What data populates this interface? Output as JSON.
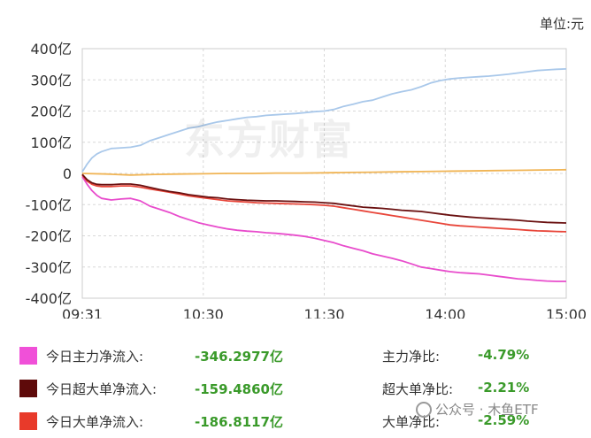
{
  "unit_label": "单位:元",
  "brand_watermark": "东方财富",
  "chart_data": {
    "type": "line",
    "x_ticks": [
      "09:31",
      "10:30",
      "11:30",
      "14:00",
      "15:00"
    ],
    "y_ticks": [
      "400亿",
      "300亿",
      "200亿",
      "100亿",
      "0",
      "-100亿",
      "-200亿",
      "-300亿",
      "-400亿"
    ],
    "ylim": [
      -400,
      400
    ],
    "grid": true,
    "series": [
      {
        "color": "#a9c8ea",
        "x": [
          0,
          1,
          2,
          3,
          4,
          6,
          8,
          10,
          12,
          14,
          16,
          18,
          20,
          22,
          24,
          26,
          28,
          30,
          32,
          34,
          36,
          38,
          40,
          42,
          44,
          46,
          48,
          50,
          52,
          54,
          56,
          58,
          60,
          62,
          64,
          66,
          68,
          70,
          72,
          74,
          76,
          78,
          80,
          82,
          84,
          86,
          88,
          90,
          92,
          94,
          96,
          98,
          100
        ],
        "values": [
          5,
          30,
          50,
          62,
          70,
          80,
          82,
          84,
          90,
          105,
          115,
          125,
          135,
          145,
          150,
          158,
          165,
          170,
          175,
          180,
          182,
          186,
          188,
          190,
          192,
          195,
          198,
          200,
          205,
          215,
          222,
          230,
          235,
          245,
          255,
          262,
          268,
          278,
          290,
          298,
          303,
          306,
          308,
          310,
          312,
          315,
          318,
          322,
          326,
          330,
          332,
          334,
          335
        ]
      },
      {
        "color": "#f0b454",
        "x": [
          0,
          5,
          10,
          15,
          20,
          25,
          30,
          35,
          40,
          45,
          50,
          55,
          60,
          65,
          70,
          75,
          80,
          85,
          90,
          95,
          100
        ],
        "values": [
          0,
          -2,
          -5,
          -3,
          -2,
          -1,
          0,
          0,
          1,
          1,
          2,
          3,
          4,
          5,
          6,
          7,
          8,
          9,
          10,
          11,
          12
        ]
      },
      {
        "color": "#e84ccc",
        "x": [
          0,
          1,
          2,
          3,
          4,
          6,
          8,
          10,
          12,
          14,
          16,
          18,
          20,
          22,
          24,
          26,
          28,
          30,
          32,
          34,
          36,
          38,
          40,
          42,
          44,
          46,
          48,
          50,
          52,
          54,
          56,
          58,
          60,
          62,
          64,
          66,
          68,
          70,
          72,
          74,
          76,
          78,
          80,
          82,
          84,
          86,
          88,
          90,
          92,
          94,
          96,
          98,
          100
        ],
        "values": [
          -10,
          -35,
          -55,
          -70,
          -80,
          -85,
          -82,
          -80,
          -88,
          -105,
          -115,
          -125,
          -138,
          -148,
          -158,
          -165,
          -172,
          -178,
          -182,
          -185,
          -187,
          -190,
          -192,
          -195,
          -198,
          -202,
          -208,
          -215,
          -222,
          -232,
          -240,
          -248,
          -258,
          -265,
          -272,
          -280,
          -290,
          -300,
          -305,
          -310,
          -315,
          -318,
          -320,
          -322,
          -326,
          -330,
          -334,
          -338,
          -340,
          -343,
          -345,
          -346,
          -346
        ]
      },
      {
        "color": "#e8463a",
        "x": [
          0,
          1,
          2,
          3,
          4,
          6,
          8,
          10,
          12,
          14,
          16,
          18,
          20,
          22,
          24,
          26,
          28,
          30,
          32,
          34,
          36,
          38,
          40,
          42,
          44,
          46,
          48,
          50,
          52,
          54,
          56,
          58,
          60,
          62,
          64,
          66,
          68,
          70,
          72,
          74,
          76,
          78,
          80,
          82,
          84,
          86,
          88,
          90,
          92,
          94,
          96,
          98,
          100
        ],
        "values": [
          -5,
          -25,
          -35,
          -40,
          -42,
          -42,
          -40,
          -40,
          -44,
          -50,
          -55,
          -60,
          -66,
          -72,
          -76,
          -80,
          -84,
          -88,
          -90,
          -92,
          -94,
          -95,
          -96,
          -97,
          -98,
          -99,
          -100,
          -102,
          -105,
          -110,
          -115,
          -120,
          -125,
          -130,
          -135,
          -140,
          -145,
          -150,
          -155,
          -160,
          -165,
          -168,
          -170,
          -172,
          -174,
          -176,
          -178,
          -180,
          -182,
          -184,
          -185,
          -186,
          -187
        ]
      },
      {
        "color": "#6a1010",
        "x": [
          0,
          1,
          2,
          3,
          4,
          6,
          8,
          10,
          12,
          14,
          16,
          18,
          20,
          22,
          24,
          26,
          28,
          30,
          32,
          34,
          36,
          38,
          40,
          42,
          44,
          46,
          48,
          50,
          52,
          54,
          56,
          58,
          60,
          62,
          64,
          66,
          68,
          70,
          72,
          74,
          76,
          78,
          80,
          82,
          84,
          86,
          88,
          90,
          92,
          94,
          96,
          98,
          100
        ],
        "values": [
          -3,
          -20,
          -30,
          -35,
          -36,
          -36,
          -34,
          -34,
          -38,
          -45,
          -52,
          -58,
          -62,
          -68,
          -72,
          -76,
          -78,
          -82,
          -84,
          -86,
          -87,
          -88,
          -88,
          -89,
          -90,
          -91,
          -92,
          -94,
          -96,
          -100,
          -104,
          -108,
          -110,
          -112,
          -115,
          -118,
          -120,
          -122,
          -126,
          -130,
          -134,
          -137,
          -140,
          -142,
          -144,
          -146,
          -148,
          -150,
          -153,
          -155,
          -157,
          -158,
          -159
        ]
      }
    ]
  },
  "legend": [
    {
      "color": "#f050d8",
      "label": "今日主力净流入:",
      "value": "-346.2977亿",
      "ratio_label": "主力净比:",
      "ratio_value": "-4.79%"
    },
    {
      "color": "#5e0a0a",
      "label": "今日超大单净流入:",
      "value": "-159.4860亿",
      "ratio_label": "超大单净比:",
      "ratio_value": "-2.21%"
    },
    {
      "color": "#e83a2a",
      "label": "今日大单净流入:",
      "value": "-186.8117亿",
      "ratio_label": "大单净比:",
      "ratio_value": "-2.59%"
    }
  ],
  "social_watermark": "公众号 · 木鱼ETF"
}
